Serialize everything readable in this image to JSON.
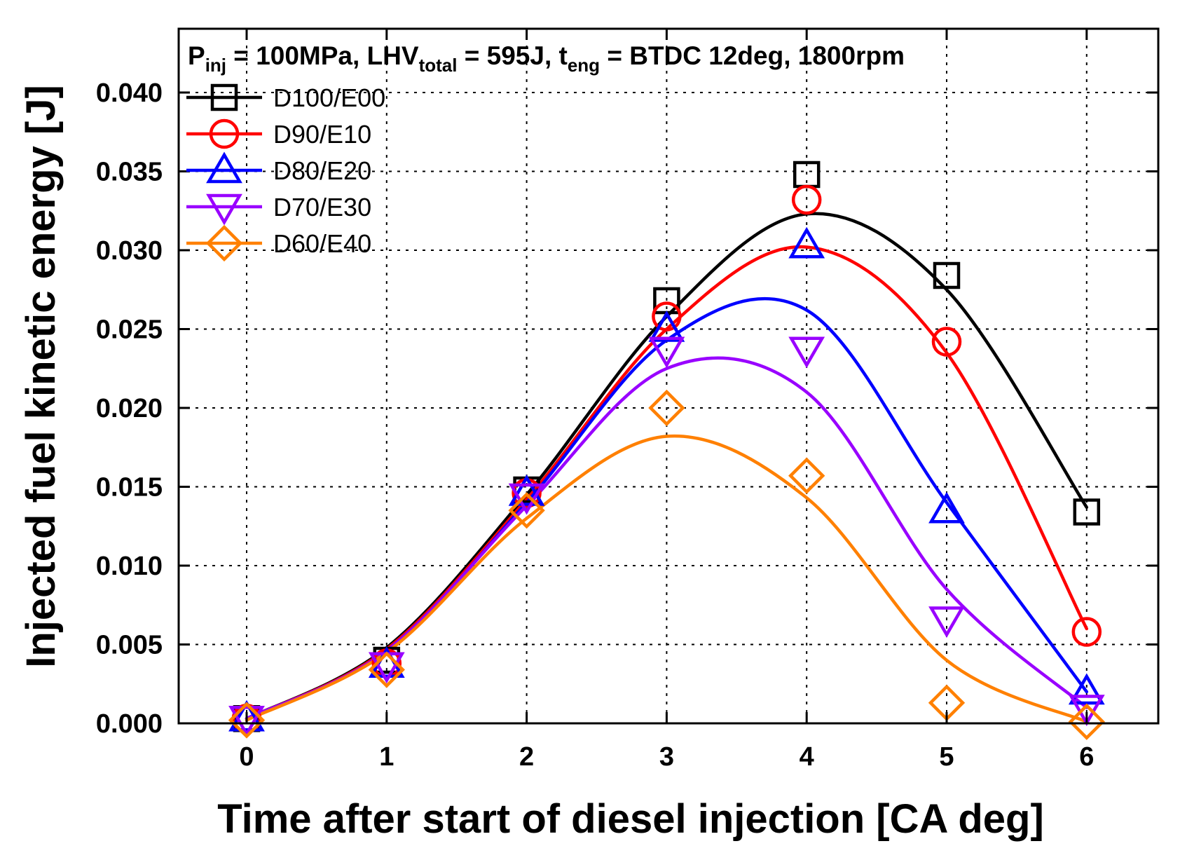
{
  "chart_data": {
    "type": "line",
    "title": "",
    "xlabel": "Time after start of diesel injection [CA deg]",
    "ylabel": "Injected fuel kinetic energy [J]",
    "xlim": [
      -0.5,
      6.5
    ],
    "ylim": [
      0,
      0.044
    ],
    "x_ticks": [
      0,
      1,
      2,
      3,
      4,
      5,
      6
    ],
    "x_tick_labels": [
      "0",
      "1",
      "2",
      "3",
      "4",
      "5",
      "6"
    ],
    "y_ticks": [
      0,
      0.005,
      0.01,
      0.015,
      0.02,
      0.025,
      0.03,
      0.035,
      0.04
    ],
    "y_tick_labels": [
      "0.000",
      "0.005",
      "0.010",
      "0.015",
      "0.020",
      "0.025",
      "0.030",
      "0.035",
      "0.040"
    ],
    "grid": true,
    "legend_position": "top-left",
    "annotation": {
      "p": "P",
      "p_sub": "inj",
      "p_rest": " = 100MPa, LHV",
      "lhv_sub": "total",
      "lhv_rest": " = 595J, t",
      "t_sub": "eng",
      "t_rest": " = BTDC 12deg, 1800rpm"
    },
    "x": [
      0,
      1,
      2,
      3,
      4,
      5,
      6
    ],
    "series": [
      {
        "name": "D100/E00",
        "marker": "square",
        "color": "#000000",
        "values": [
          0.0003,
          0.004,
          0.0148,
          0.0268,
          0.0348,
          0.0284,
          0.0134
        ],
        "fit": [
          0.0003,
          0.0048,
          0.0145,
          0.0258,
          0.0323,
          0.0275,
          0.0137
        ]
      },
      {
        "name": "D90/E10",
        "marker": "circle",
        "color": "#ff0000",
        "values": [
          0.0003,
          0.0038,
          0.0146,
          0.0258,
          0.0332,
          0.0242,
          0.0058
        ],
        "fit": [
          0.0003,
          0.0047,
          0.0142,
          0.025,
          0.0302,
          0.0235,
          0.006
        ]
      },
      {
        "name": "D80/E20",
        "marker": "triangle-up",
        "color": "#0000ff",
        "values": [
          0.0003,
          0.0037,
          0.0146,
          0.025,
          0.0303,
          0.0135,
          0.002
        ],
        "fit": [
          0.0003,
          0.0046,
          0.014,
          0.0243,
          0.0262,
          0.014,
          0.002
        ]
      },
      {
        "name": "D70/E30",
        "marker": "triangle-down",
        "color": "#9900ff",
        "values": [
          0.0003,
          0.0037,
          0.0144,
          0.0237,
          0.0237,
          0.0066,
          0.001
        ],
        "fit": [
          0.0003,
          0.0046,
          0.0138,
          0.0225,
          0.021,
          0.0085,
          0.001
        ]
      },
      {
        "name": "D60/E40",
        "marker": "diamond",
        "color": "#ff8000",
        "values": [
          0.0002,
          0.0034,
          0.0135,
          0.02,
          0.0157,
          0.0013,
          0.0001
        ],
        "fit": [
          0.0002,
          0.0045,
          0.013,
          0.0182,
          0.0143,
          0.004,
          0.0001
        ]
      }
    ]
  }
}
